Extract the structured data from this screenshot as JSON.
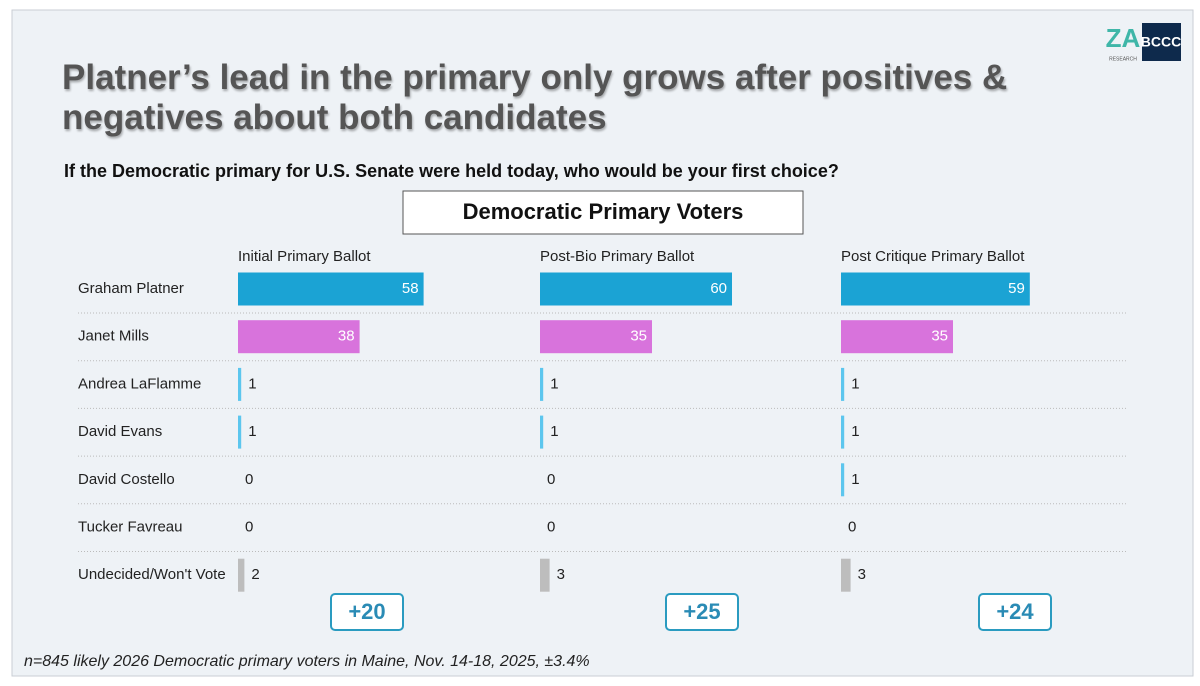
{
  "logo": {
    "left": "ZA",
    "left_sub": "RESEARCH",
    "right": "BCCC"
  },
  "chart_data": {
    "type": "bar",
    "orientation": "horizontal",
    "title": "Platner’s lead in the primary only grows after positives & negatives about both candidates",
    "subtitle": "If the Democratic primary for U.S. Senate were held today, who would be your first choice?",
    "group_label": "Democratic Primary Voters",
    "note": "n=845 likely 2026 Democratic primary voters in Maine, Nov. 14-18, 2025, ±3.4%",
    "categories": [
      "Graham Platner",
      "Janet Mills",
      "Andrea LaFlamme",
      "David Evans",
      "David Costello",
      "Tucker Favreau",
      "Undecided/Won't Vote"
    ],
    "colors": [
      "#1ba3d4",
      "#d873dc",
      "#5cc6ee",
      "#5cc6ee",
      "#5cc6ee",
      "#5cc6ee",
      "#bdbdbd"
    ],
    "series": [
      {
        "name": "Initial Primary Ballot",
        "values": [
          58,
          38,
          1,
          1,
          0,
          0,
          2
        ],
        "lead_label": "+20"
      },
      {
        "name": "Post-Bio Primary Ballot",
        "values": [
          60,
          35,
          1,
          1,
          0,
          0,
          3
        ],
        "lead_label": "+25"
      },
      {
        "name": "Post Critique Primary Ballot",
        "values": [
          59,
          35,
          1,
          1,
          1,
          0,
          3
        ],
        "lead_label": "+24"
      }
    ]
  }
}
